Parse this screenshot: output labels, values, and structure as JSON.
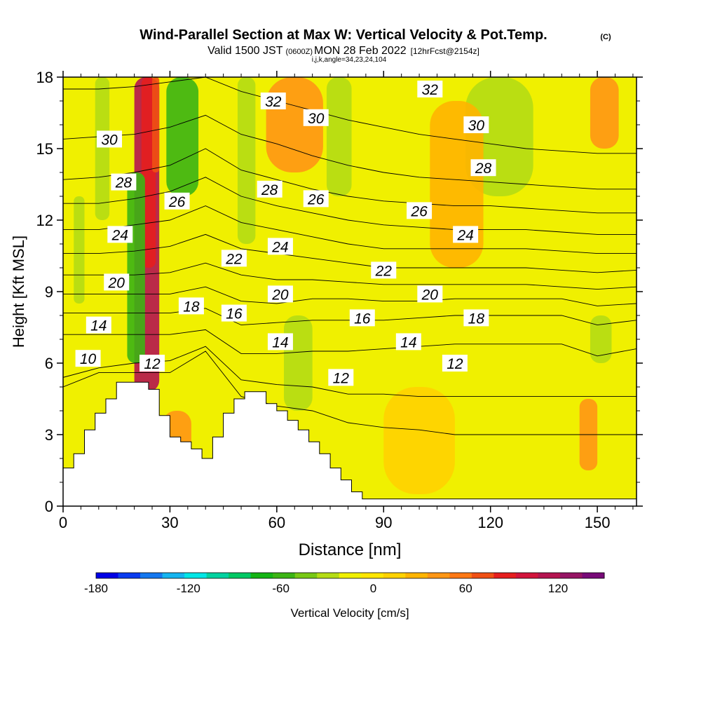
{
  "chart_data": {
    "type": "contour",
    "title": "Wind-Parallel Section at Max W: Vertical Velocity & Pot.Temp.",
    "title_mark": "(C)",
    "subtitle_parts": {
      "valid_prefix": "Valid 1500 JST",
      "utc": "(0600Z)",
      "date": "MON 28 Feb 2022",
      "forecast": "[12hrFcst@2154z]"
    },
    "indices_line": "i,j,k,angle=34,23,24,104",
    "xlabel": "Distance [nm]",
    "ylabel": "Height [Kft MSL]",
    "xlim": [
      0,
      161
    ],
    "ylim": [
      0,
      18
    ],
    "xticks": [
      0,
      30,
      60,
      90,
      120,
      150
    ],
    "yticks": [
      0,
      3,
      6,
      9,
      12,
      15,
      18
    ],
    "colorbar": {
      "label": "Vertical Velocity [cm/s]",
      "min": -180,
      "max": 150,
      "step": 15,
      "tick_labels": [
        -180,
        -120,
        -60,
        0,
        60,
        120
      ],
      "colors": [
        "#0000e6",
        "#0a3cf0",
        "#1478f0",
        "#14b4f0",
        "#00e6e6",
        "#00d2a0",
        "#00c864",
        "#14b414",
        "#3cb414",
        "#78c814",
        "#b4dc14",
        "#f0f000",
        "#ffe600",
        "#ffd200",
        "#ffb400",
        "#ff9614",
        "#ff7814",
        "#f05014",
        "#e61e1e",
        "#d2143c",
        "#b41450",
        "#961464",
        "#780a78"
      ]
    },
    "terrain": {
      "x": [
        0,
        3,
        3,
        6,
        6,
        9,
        9,
        12,
        12,
        15,
        15,
        18,
        18,
        21,
        21,
        24,
        24,
        27,
        27,
        30,
        30,
        33,
        33,
        36,
        36,
        39,
        39,
        42,
        42,
        45,
        45,
        48,
        48,
        51,
        51,
        54,
        54,
        57,
        57,
        60,
        60,
        63,
        63,
        66,
        66,
        69,
        69,
        72,
        72,
        75,
        75,
        78,
        78,
        81,
        81,
        84,
        84,
        161
      ],
      "height": [
        1.6,
        1.6,
        2.2,
        2.2,
        3.2,
        3.2,
        3.9,
        3.9,
        4.5,
        4.5,
        5.2,
        5.2,
        5.2,
        5.2,
        5.2,
        5.2,
        4.9,
        4.9,
        3.8,
        3.8,
        2.9,
        2.9,
        2.7,
        2.7,
        2.4,
        2.4,
        2.0,
        2.0,
        2.9,
        2.9,
        3.9,
        3.9,
        4.5,
        4.5,
        4.8,
        4.8,
        4.8,
        4.8,
        4.3,
        4.3,
        4.0,
        4.0,
        3.6,
        3.6,
        3.2,
        3.2,
        2.7,
        2.7,
        2.2,
        2.2,
        1.6,
        1.6,
        1.1,
        1.1,
        0.6,
        0.6,
        0.3,
        0.3
      ]
    },
    "velocity_bands": [
      {
        "x0": 20,
        "x1": 27,
        "y0": 4.8,
        "y1": 18,
        "value": 120
      },
      {
        "x0": 22,
        "x1": 26,
        "y0": 10,
        "y1": 18,
        "value": 90
      },
      {
        "x0": 25,
        "x1": 27,
        "y0": 14,
        "y1": 18,
        "value": 75
      },
      {
        "x0": 18,
        "x1": 23,
        "y0": 6,
        "y1": 14,
        "value": -60
      },
      {
        "x0": 29,
        "x1": 38,
        "y0": 13,
        "y1": 18,
        "value": -60
      },
      {
        "x0": 3,
        "x1": 6,
        "y0": 8.5,
        "y1": 13,
        "value": -30
      },
      {
        "x0": 9,
        "x1": 13,
        "y0": 12,
        "y1": 18,
        "value": -30
      },
      {
        "x0": 49,
        "x1": 54,
        "y0": 11,
        "y1": 18,
        "value": -30
      },
      {
        "x0": 62,
        "x1": 70,
        "y0": 4,
        "y1": 8,
        "value": -30
      },
      {
        "x0": 74,
        "x1": 81,
        "y0": 13,
        "y1": 18,
        "value": -30
      },
      {
        "x0": 113,
        "x1": 132,
        "y0": 13,
        "y1": 18,
        "value": -30
      },
      {
        "x0": 148,
        "x1": 154,
        "y0": 6,
        "y1": 8,
        "value": -30
      },
      {
        "x0": 57,
        "x1": 73,
        "y0": 14,
        "y1": 18,
        "value": 45
      },
      {
        "x0": 28,
        "x1": 36,
        "y0": 2,
        "y1": 4,
        "value": 45
      },
      {
        "x0": 90,
        "x1": 110,
        "y0": 0.5,
        "y1": 5,
        "value": 15
      },
      {
        "x0": 145,
        "x1": 150,
        "y0": 1.5,
        "y1": 4.5,
        "value": 45
      },
      {
        "x0": 148,
        "x1": 156,
        "y0": 15,
        "y1": 18,
        "value": 45
      },
      {
        "x0": 103,
        "x1": 118,
        "y0": 10,
        "y1": 17,
        "value": 30
      }
    ],
    "isentrope_labels": [
      {
        "value": 10,
        "x": 7,
        "y": 6.2
      },
      {
        "value": 12,
        "x": 25,
        "y": 6.0
      },
      {
        "value": 12,
        "x": 78,
        "y": 5.4
      },
      {
        "value": 12,
        "x": 110,
        "y": 6.0
      },
      {
        "value": 14,
        "x": 10,
        "y": 7.6
      },
      {
        "value": 14,
        "x": 61,
        "y": 6.9
      },
      {
        "value": 14,
        "x": 97,
        "y": 6.9
      },
      {
        "value": 16,
        "x": 48,
        "y": 8.1
      },
      {
        "value": 16,
        "x": 84,
        "y": 7.9
      },
      {
        "value": 18,
        "x": 36,
        "y": 8.4
      },
      {
        "value": 18,
        "x": 116,
        "y": 7.9
      },
      {
        "value": 20,
        "x": 15,
        "y": 9.4
      },
      {
        "value": 20,
        "x": 61,
        "y": 8.9
      },
      {
        "value": 20,
        "x": 103,
        "y": 8.9
      },
      {
        "value": 22,
        "x": 48,
        "y": 10.4
      },
      {
        "value": 22,
        "x": 90,
        "y": 9.9
      },
      {
        "value": 24,
        "x": 16,
        "y": 11.4
      },
      {
        "value": 24,
        "x": 61,
        "y": 10.9
      },
      {
        "value": 24,
        "x": 113,
        "y": 11.4
      },
      {
        "value": 26,
        "x": 32,
        "y": 12.8
      },
      {
        "value": 26,
        "x": 71,
        "y": 12.9
      },
      {
        "value": 26,
        "x": 100,
        "y": 12.4
      },
      {
        "value": 28,
        "x": 17,
        "y": 13.6
      },
      {
        "value": 28,
        "x": 58,
        "y": 13.3
      },
      {
        "value": 28,
        "x": 118,
        "y": 14.2
      },
      {
        "value": 30,
        "x": 13,
        "y": 15.4
      },
      {
        "value": 30,
        "x": 71,
        "y": 16.3
      },
      {
        "value": 30,
        "x": 116,
        "y": 16.0
      },
      {
        "value": 32,
        "x": 59,
        "y": 17.0
      },
      {
        "value": 32,
        "x": 103,
        "y": 17.5
      }
    ],
    "isentropes": [
      {
        "value": 10,
        "y": [
          5.0,
          5.6,
          5.6,
          5.6,
          6.5,
          4.6,
          4.2,
          4.0,
          3.5,
          3.3,
          3.2,
          3.0,
          3.0,
          3.0,
          3.0,
          3.0,
          3.0
        ]
      },
      {
        "value": 12,
        "y": [
          5.4,
          5.8,
          6.0,
          6.1,
          6.7,
          5.3,
          5.1,
          5.0,
          4.7,
          4.7,
          4.6,
          4.6,
          4.6,
          4.6,
          4.6,
          4.6,
          4.6
        ]
      },
      {
        "value": 14,
        "y": [
          7.2,
          7.2,
          7.2,
          7.2,
          7.4,
          6.4,
          6.4,
          6.5,
          6.5,
          6.6,
          6.7,
          6.8,
          6.8,
          6.8,
          6.8,
          6.3,
          6.6
        ]
      },
      {
        "value": 16,
        "y": [
          8.1,
          8.1,
          8.1,
          8.1,
          8.3,
          7.6,
          7.7,
          7.8,
          7.8,
          7.8,
          7.9,
          8.0,
          8.0,
          8.0,
          8.0,
          7.6,
          7.8
        ]
      },
      {
        "value": 18,
        "y": [
          8.9,
          8.9,
          8.9,
          8.9,
          9.2,
          8.6,
          8.5,
          8.7,
          8.7,
          8.6,
          8.6,
          8.7,
          8.7,
          8.7,
          8.7,
          8.4,
          8.5
        ]
      },
      {
        "value": 20,
        "y": [
          9.7,
          9.7,
          9.7,
          9.8,
          10.2,
          9.7,
          9.5,
          9.5,
          9.4,
          9.3,
          9.3,
          9.3,
          9.3,
          9.3,
          9.2,
          9.1,
          9.2
        ]
      },
      {
        "value": 22,
        "y": [
          10.6,
          10.6,
          10.7,
          10.9,
          11.4,
          10.8,
          10.6,
          10.4,
          10.2,
          10.0,
          10.0,
          10.0,
          10.0,
          10.0,
          9.9,
          9.8,
          9.9
        ]
      },
      {
        "value": 24,
        "y": [
          11.6,
          11.6,
          11.8,
          12.0,
          12.6,
          11.9,
          11.6,
          11.3,
          11.0,
          10.8,
          10.8,
          10.8,
          10.8,
          10.8,
          10.7,
          10.6,
          10.6
        ]
      },
      {
        "value": 26,
        "y": [
          12.7,
          12.7,
          12.9,
          13.2,
          13.8,
          13.0,
          12.6,
          12.3,
          12.0,
          11.8,
          11.7,
          11.6,
          11.6,
          11.6,
          11.5,
          11.4,
          11.4
        ]
      },
      {
        "value": 28,
        "y": [
          13.7,
          13.8,
          14.0,
          14.3,
          15.0,
          14.1,
          13.7,
          13.3,
          13.0,
          12.8,
          12.7,
          12.6,
          12.6,
          12.5,
          12.4,
          12.3,
          12.3
        ]
      },
      {
        "value": 30,
        "y": [
          15.4,
          15.5,
          15.6,
          15.9,
          16.4,
          15.6,
          15.2,
          14.7,
          14.3,
          14.0,
          13.8,
          13.7,
          13.6,
          13.5,
          13.4,
          13.3,
          13.3
        ]
      },
      {
        "value": 32,
        "y": [
          17.5,
          17.5,
          17.6,
          17.8,
          18.0,
          17.4,
          17.0,
          16.6,
          16.2,
          15.9,
          15.6,
          15.4,
          15.2,
          15.0,
          14.9,
          14.8,
          14.8
        ]
      }
    ],
    "isentrope_x": [
      0,
      10,
      20,
      30,
      40,
      50,
      60,
      70,
      80,
      90,
      100,
      110,
      120,
      130,
      140,
      150,
      161
    ]
  }
}
